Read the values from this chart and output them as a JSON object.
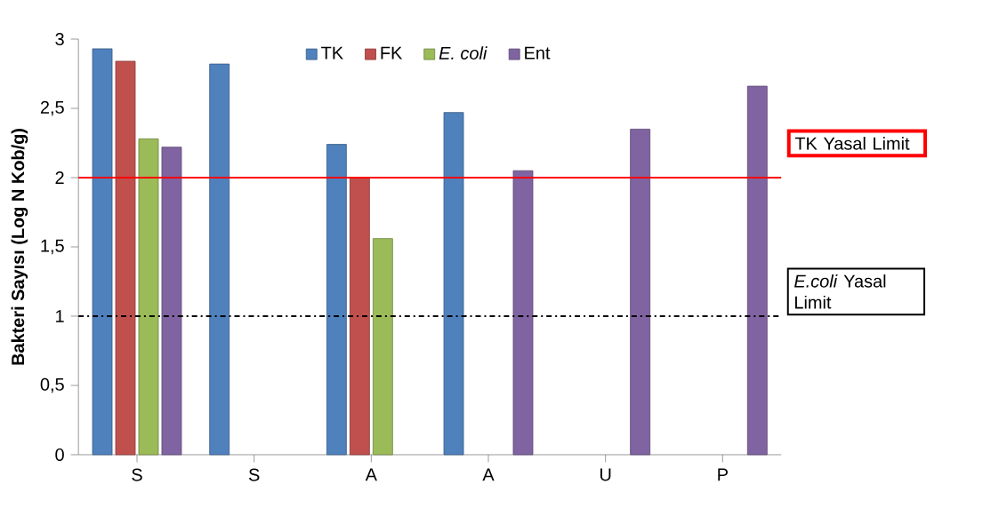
{
  "chart_data": {
    "type": "bar",
    "ylabel": "Bakteri Sayısı (Log N Kob/g)",
    "categories": [
      "S",
      "S",
      "A",
      "A",
      "U",
      "P"
    ],
    "series": [
      {
        "name": "TK",
        "color": "#4f81bd",
        "values": [
          2.93,
          2.82,
          2.24,
          2.47,
          null,
          null
        ]
      },
      {
        "name": "FK",
        "color": "#c0504d",
        "values": [
          2.84,
          null,
          2.0,
          null,
          null,
          null
        ]
      },
      {
        "name": "*E. coli*",
        "color": "#9bbb59",
        "values": [
          2.28,
          null,
          1.56,
          null,
          null,
          null
        ]
      },
      {
        "name": "Ent",
        "color": "#8064a2",
        "values": [
          2.22,
          null,
          null,
          2.05,
          2.35,
          2.66
        ]
      }
    ],
    "ylim": [
      0,
      3
    ],
    "yticks": [
      0,
      {
        "value": 0.5,
        "label": "0,5"
      },
      1,
      {
        "value": 1.5,
        "label": "1,5"
      },
      2,
      {
        "value": 2.5,
        "label": "2,5"
      },
      3
    ],
    "ref_lines": [
      {
        "axis": "y",
        "value": 2,
        "label": "TK Yasal Limit",
        "color": "#ff0000",
        "line_style": "solid"
      },
      {
        "axis": "y",
        "value": 1,
        "label": "*E.coli* Yasal Limit",
        "color": "#000000",
        "line_style": "dashdot"
      }
    ],
    "legend": "top"
  }
}
